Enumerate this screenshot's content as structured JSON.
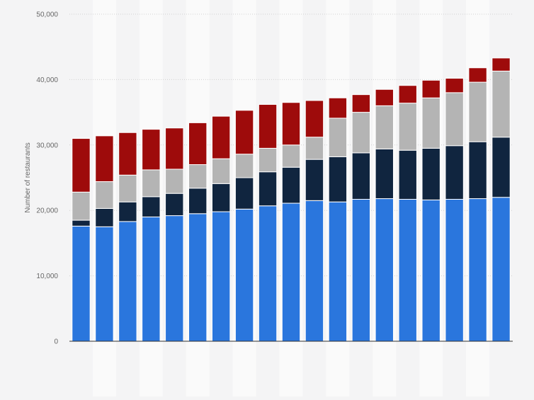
{
  "chart_data": {
    "type": "bar",
    "stacked": true,
    "ylabel": "Number of restaurants",
    "ylim": [
      0,
      50000
    ],
    "yticks": [
      0,
      10000,
      20000,
      30000,
      40000,
      50000
    ],
    "ytick_labels": [
      "0",
      "10,000",
      "20,000",
      "30,000",
      "40,000",
      "50,000"
    ],
    "grid": "horizontal dotted",
    "x_tick_labels_visible": false,
    "legend": "none",
    "category_count": 19,
    "series": [
      {
        "color": "#2a76dd",
        "values": [
          17600,
          17500,
          18300,
          19000,
          19200,
          19500,
          19800,
          20200,
          20700,
          21100,
          21500,
          21300,
          21700,
          21800,
          21700,
          21600,
          21700,
          21800,
          22000
        ]
      },
      {
        "color": "#10253f",
        "values": [
          900,
          2800,
          3000,
          3100,
          3400,
          3900,
          4300,
          4800,
          5200,
          5500,
          6300,
          6900,
          7100,
          7600,
          7500,
          7900,
          8200,
          8700,
          9200
        ]
      },
      {
        "color": "#b4b4b4",
        "values": [
          4300,
          4100,
          4100,
          4100,
          3700,
          3600,
          3800,
          3600,
          3600,
          3400,
          3400,
          5900,
          6200,
          6600,
          7200,
          7700,
          8100,
          9100,
          10100
        ]
      },
      {
        "color": "#9e0b0b",
        "values": [
          8200,
          7000,
          6500,
          6200,
          6300,
          6400,
          6500,
          6700,
          6700,
          6500,
          5600,
          3100,
          2700,
          2500,
          2700,
          2700,
          2200,
          2200,
          2000
        ]
      }
    ]
  }
}
